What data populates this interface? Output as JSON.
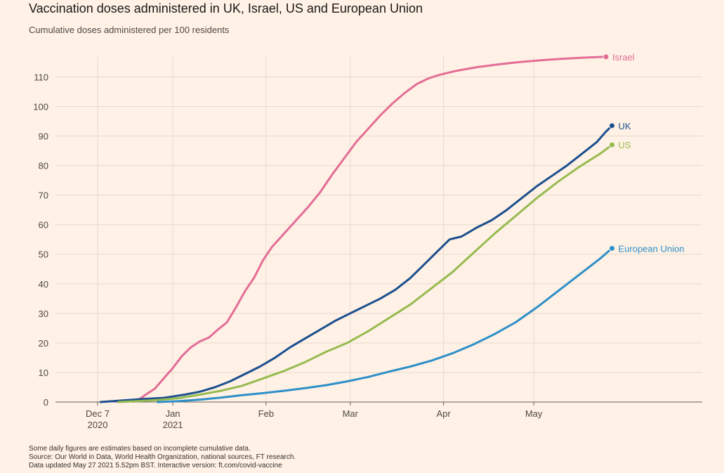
{
  "header": {
    "title": "Vaccination doses administered in UK, Israel, US and European Union",
    "subtitle": "Cumulative doses administered per 100 residents"
  },
  "footer": {
    "note": "Some daily figures are estimates based on incomplete cumulative data.",
    "source": "Source: Our World in Data, World Health Organization, national sources, FT research.",
    "updated": "Data updated May 27 2021 5.52pm BST. Interactive version: ft.com/covid-vaccine"
  },
  "chart_data": {
    "type": "line",
    "title": "Vaccination doses administered in UK, Israel, US and European Union",
    "subtitle": "Cumulative doses administered per 100 residents",
    "xlabel": "",
    "ylabel": "",
    "x_axis": {
      "type": "date",
      "range": [
        "2020-11-23",
        "2021-06-26"
      ],
      "ticks": [
        {
          "date": "2020-12-07",
          "label": "Dec 7",
          "sublabel": "2020"
        },
        {
          "date": "2021-01-01",
          "label": "Jan",
          "sublabel": "2021"
        },
        {
          "date": "2021-02-01",
          "label": "Feb",
          "sublabel": ""
        },
        {
          "date": "2021-03-01",
          "label": "Mar",
          "sublabel": ""
        },
        {
          "date": "2021-04-01",
          "label": "Apr",
          "sublabel": ""
        },
        {
          "date": "2021-05-01",
          "label": "May",
          "sublabel": ""
        }
      ]
    },
    "y_axis": {
      "range": [
        0,
        117
      ],
      "ticks": [
        0,
        10,
        20,
        30,
        40,
        50,
        60,
        70,
        80,
        90,
        100,
        110
      ]
    },
    "grid": true,
    "legend": "direct labels at line ends",
    "series": [
      {
        "name": "Israel",
        "color": "#e36d96",
        "points": [
          [
            "2020-12-19",
            0.1
          ],
          [
            "2020-12-21",
            1.0
          ],
          [
            "2020-12-23",
            2.5
          ],
          [
            "2020-12-26",
            4.5
          ],
          [
            "2020-12-29",
            8.0
          ],
          [
            "2021-01-01",
            11.5
          ],
          [
            "2021-01-04",
            15.5
          ],
          [
            "2021-01-07",
            18.5
          ],
          [
            "2021-01-10",
            20.5
          ],
          [
            "2021-01-13",
            21.8
          ],
          [
            "2021-01-16",
            24.5
          ],
          [
            "2021-01-19",
            27.0
          ],
          [
            "2021-01-22",
            32.0
          ],
          [
            "2021-01-25",
            37.5
          ],
          [
            "2021-01-28",
            42.0
          ],
          [
            "2021-01-31",
            48.0
          ],
          [
            "2021-02-03",
            52.5
          ],
          [
            "2021-02-07",
            57.0
          ],
          [
            "2021-02-11",
            61.5
          ],
          [
            "2021-02-15",
            66.0
          ],
          [
            "2021-02-19",
            71.0
          ],
          [
            "2021-02-23",
            77.0
          ],
          [
            "2021-02-27",
            82.5
          ],
          [
            "2021-03-03",
            88.0
          ],
          [
            "2021-03-07",
            92.5
          ],
          [
            "2021-03-11",
            97.0
          ],
          [
            "2021-03-15",
            101.0
          ],
          [
            "2021-03-19",
            104.5
          ],
          [
            "2021-03-23",
            107.5
          ],
          [
            "2021-03-27",
            109.5
          ],
          [
            "2021-03-31",
            110.8
          ],
          [
            "2021-04-05",
            112.0
          ],
          [
            "2021-04-12",
            113.3
          ],
          [
            "2021-04-19",
            114.2
          ],
          [
            "2021-04-26",
            115.0
          ],
          [
            "2021-05-03",
            115.6
          ],
          [
            "2021-05-10",
            116.1
          ],
          [
            "2021-05-17",
            116.5
          ],
          [
            "2021-05-25",
            116.8
          ]
        ]
      },
      {
        "name": "UK",
        "color": "#1b4f8f",
        "points": [
          [
            "2020-12-08",
            0.0
          ],
          [
            "2020-12-15",
            0.5
          ],
          [
            "2020-12-22",
            1.0
          ],
          [
            "2020-12-29",
            1.4
          ],
          [
            "2021-01-05",
            2.5
          ],
          [
            "2021-01-10",
            3.5
          ],
          [
            "2021-01-15",
            5.0
          ],
          [
            "2021-01-20",
            7.0
          ],
          [
            "2021-01-25",
            9.5
          ],
          [
            "2021-01-30",
            12.0
          ],
          [
            "2021-02-04",
            15.0
          ],
          [
            "2021-02-09",
            18.5
          ],
          [
            "2021-02-14",
            21.5
          ],
          [
            "2021-02-19",
            24.5
          ],
          [
            "2021-02-24",
            27.5
          ],
          [
            "2021-03-01",
            30.0
          ],
          [
            "2021-03-06",
            32.5
          ],
          [
            "2021-03-11",
            35.0
          ],
          [
            "2021-03-16",
            38.0
          ],
          [
            "2021-03-21",
            42.0
          ],
          [
            "2021-03-26",
            47.0
          ],
          [
            "2021-03-31",
            52.0
          ],
          [
            "2021-04-03",
            55.0
          ],
          [
            "2021-04-07",
            56.0
          ],
          [
            "2021-04-12",
            59.0
          ],
          [
            "2021-04-17",
            61.5
          ],
          [
            "2021-04-22",
            65.0
          ],
          [
            "2021-04-27",
            69.0
          ],
          [
            "2021-05-02",
            73.0
          ],
          [
            "2021-05-07",
            76.5
          ],
          [
            "2021-05-12",
            80.0
          ],
          [
            "2021-05-17",
            84.0
          ],
          [
            "2021-05-22",
            88.0
          ],
          [
            "2021-05-25",
            91.5
          ],
          [
            "2021-05-27",
            93.5
          ]
        ]
      },
      {
        "name": "US",
        "color": "#96bb50",
        "points": [
          [
            "2020-12-14",
            0.0
          ],
          [
            "2020-12-20",
            0.3
          ],
          [
            "2020-12-27",
            0.7
          ],
          [
            "2021-01-03",
            1.3
          ],
          [
            "2021-01-10",
            2.5
          ],
          [
            "2021-01-17",
            3.8
          ],
          [
            "2021-01-24",
            5.5
          ],
          [
            "2021-01-31",
            8.0
          ],
          [
            "2021-02-07",
            10.5
          ],
          [
            "2021-02-14",
            13.5
          ],
          [
            "2021-02-21",
            17.0
          ],
          [
            "2021-02-28",
            20.0
          ],
          [
            "2021-03-07",
            24.0
          ],
          [
            "2021-03-14",
            28.5
          ],
          [
            "2021-03-21",
            33.0
          ],
          [
            "2021-03-28",
            38.5
          ],
          [
            "2021-04-04",
            44.0
          ],
          [
            "2021-04-11",
            50.5
          ],
          [
            "2021-04-18",
            57.0
          ],
          [
            "2021-04-25",
            63.0
          ],
          [
            "2021-05-02",
            69.0
          ],
          [
            "2021-05-09",
            74.5
          ],
          [
            "2021-05-16",
            79.5
          ],
          [
            "2021-05-23",
            84.0
          ],
          [
            "2021-05-27",
            87.0
          ]
        ]
      },
      {
        "name": "European Union",
        "color": "#2d8fc9",
        "points": [
          [
            "2020-12-27",
            0.0
          ],
          [
            "2021-01-03",
            0.3
          ],
          [
            "2021-01-10",
            0.8
          ],
          [
            "2021-01-17",
            1.5
          ],
          [
            "2021-01-24",
            2.3
          ],
          [
            "2021-01-31",
            3.0
          ],
          [
            "2021-02-07",
            3.8
          ],
          [
            "2021-02-14",
            4.7
          ],
          [
            "2021-02-21",
            5.7
          ],
          [
            "2021-02-28",
            7.0
          ],
          [
            "2021-03-07",
            8.5
          ],
          [
            "2021-03-14",
            10.3
          ],
          [
            "2021-03-21",
            12.0
          ],
          [
            "2021-03-28",
            14.0
          ],
          [
            "2021-04-04",
            16.5
          ],
          [
            "2021-04-11",
            19.5
          ],
          [
            "2021-04-18",
            23.0
          ],
          [
            "2021-04-25",
            27.0
          ],
          [
            "2021-05-02",
            32.0
          ],
          [
            "2021-05-09",
            37.5
          ],
          [
            "2021-05-16",
            43.0
          ],
          [
            "2021-05-23",
            48.5
          ],
          [
            "2021-05-27",
            52.0
          ]
        ]
      }
    ]
  }
}
